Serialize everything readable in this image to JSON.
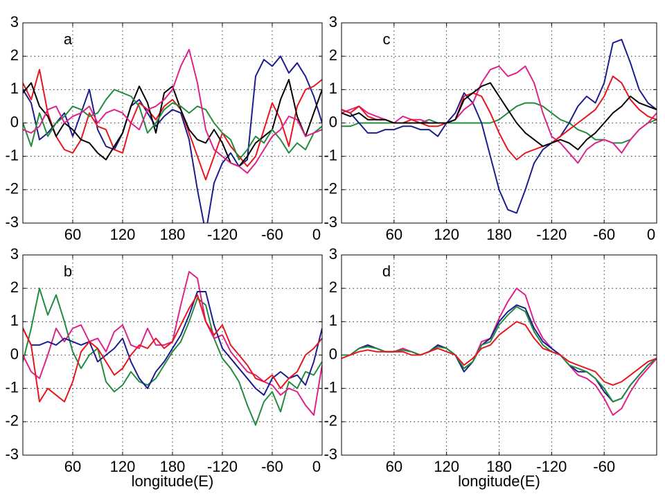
{
  "chart_data": [
    {
      "type": "line",
      "annotation": "a",
      "x": [
        0,
        10,
        20,
        30,
        40,
        50,
        60,
        70,
        80,
        90,
        100,
        110,
        120,
        130,
        140,
        150,
        160,
        170,
        180,
        190,
        200,
        210,
        220,
        230,
        240,
        250,
        260,
        270,
        280,
        290,
        300,
        310,
        320,
        330,
        340,
        350,
        360
      ],
      "xlim": [
        0,
        360
      ],
      "xticks": [
        60,
        120,
        180,
        {
          "value": 240,
          "label": "-120"
        },
        {
          "value": 300,
          "label": "-60"
        },
        {
          "value": 360,
          "label": "0"
        }
      ],
      "ylim": [
        -3,
        3
      ],
      "yticks": [
        -3,
        -2,
        -1,
        0,
        1,
        2,
        3
      ],
      "grid": true,
      "series": [
        {
          "color": "#1c1c8f",
          "values": [
            1,
            0.6,
            -0.5,
            -0.3,
            0,
            0.3,
            -0.4,
            0.3,
            1,
            -0.2,
            -0.7,
            -0.8,
            -0.3,
            0.5,
            0.7,
            0.3,
            -0.1,
            0.2,
            0.4,
            0.3,
            -0.5,
            -2,
            -3.3,
            -1.8,
            -1.2,
            -0.9,
            -1.3,
            -1.1,
            1.4,
            1.9,
            1.7,
            2,
            1.5,
            1.8,
            1.4,
            0.8,
            0
          ]
        },
        {
          "color": "#e8141e",
          "values": [
            1.2,
            0.7,
            1.6,
            0.3,
            -0.4,
            -0.8,
            -0.9,
            -0.5,
            0.3,
            -0.1,
            -0.2,
            -0.8,
            -0.9,
            0,
            0.6,
            0.4,
            0.1,
            0.5,
            0.7,
            0.4,
            -0.3,
            -1,
            -1.7,
            -1,
            -0.3,
            -0.7,
            -1,
            -1.3,
            -1,
            -0.2,
            0.6,
            0.1,
            -0.7,
            0.5,
            1,
            1.1,
            1.3
          ]
        },
        {
          "color": "#000000",
          "values": [
            0.9,
            1.2,
            0.5,
            0.2,
            -0.4,
            0,
            -0.2,
            -0.5,
            -0.6,
            -0.9,
            -1.1,
            -0.7,
            -0.3,
            0.5,
            1.1,
            0.6,
            -0.3,
            0.9,
            1.1,
            0.4,
            -0.2,
            -0.5,
            -0.6,
            -0.2,
            -0.6,
            -1.2,
            -1.3,
            -1,
            -0.6,
            -0.4,
            -0.2,
            0.7,
            1.3,
            0.2,
            -0.4,
            0.3,
            1
          ]
        },
        {
          "color": "#218c3c",
          "values": [
            0,
            -0.7,
            0.3,
            -0.4,
            0,
            0.2,
            0.5,
            0.4,
            0.2,
            0.3,
            0.7,
            1,
            0.9,
            0.8,
            0.5,
            -0.3,
            0,
            0.4,
            0.6,
            0.5,
            0.3,
            0.5,
            0.4,
            0,
            -0.3,
            -0.5,
            -1.1,
            -0.8,
            -0.4,
            -0.6,
            -0.2,
            -0.5,
            -0.9,
            -0.6,
            -0.8,
            -0.3,
            -0.1
          ]
        },
        {
          "color": "#e0218a",
          "values": [
            -0.2,
            -0.3,
            -0.1,
            0.4,
            0.5,
            0,
            0.2,
            0.3,
            0.5,
            0,
            0.3,
            0.4,
            0.3,
            0,
            -0.2,
            0.4,
            0.5,
            0.7,
            1,
            1.7,
            2.2,
            1.2,
            -0.2,
            -0.8,
            -1,
            -1.2,
            -1.3,
            -1.5,
            -1.2,
            -0.8,
            -0.4,
            -0.2,
            0.2,
            0.1,
            -0.4,
            -0.3,
            -0.2
          ]
        }
      ]
    },
    {
      "type": "line",
      "annotation": "b",
      "xlabel": "longitude(E)",
      "x": [
        0,
        10,
        20,
        30,
        40,
        50,
        60,
        70,
        80,
        90,
        100,
        110,
        120,
        130,
        140,
        150,
        160,
        170,
        180,
        190,
        200,
        210,
        220,
        230,
        240,
        250,
        260,
        270,
        280,
        290,
        300,
        310,
        320,
        330,
        340,
        350,
        360
      ],
      "xlim": [
        0,
        360
      ],
      "xticks": [
        60,
        120,
        180,
        {
          "value": 240,
          "label": "-120"
        },
        {
          "value": 300,
          "label": "-60"
        },
        {
          "value": 360,
          "label": "0"
        }
      ],
      "ylim": [
        -3,
        3
      ],
      "yticks": [
        -3,
        -2,
        -1,
        0,
        1,
        2,
        3
      ],
      "grid": true,
      "series": [
        {
          "color": "#218c3c",
          "values": [
            -0.2,
            0.8,
            2,
            1.2,
            1.8,
            1,
            0.1,
            -0.4,
            0,
            0.2,
            -0.8,
            -1.1,
            -0.9,
            -0.5,
            -0.8,
            -0.9,
            -0.7,
            -0.3,
            0.1,
            0.4,
            1,
            1.7,
            1.5,
            0.5,
            -0.1,
            -0.4,
            -0.8,
            -1.5,
            -2.1,
            -1.4,
            -1.1,
            -1.7,
            -0.8,
            -1,
            -0.5,
            -0.6,
            -0.2
          ]
        },
        {
          "color": "#e0218a",
          "values": [
            0,
            -0.5,
            -0.7,
            0,
            0.8,
            0.4,
            0.8,
            0.9,
            0.4,
            0.5,
            0.1,
            0.7,
            0.9,
            0.3,
            0.2,
            0.8,
            0.3,
            0.3,
            0.4,
            1.5,
            2.5,
            2.3,
            1,
            0.5,
            0.6,
            0.1,
            -0.2,
            -0.5,
            -0.6,
            -0.8,
            -0.9,
            -1.2,
            -1,
            -1.1,
            -1.5,
            -1.8,
            -0.3
          ]
        },
        {
          "color": "#1c1c8f",
          "values": [
            0.8,
            0.3,
            0.3,
            0.4,
            0.3,
            0.5,
            0.4,
            0.3,
            0.4,
            -0.2,
            0,
            0.2,
            0.5,
            -0.2,
            -0.7,
            -1,
            -0.5,
            -0.2,
            0.2,
            0.6,
            1.2,
            1.9,
            1.9,
            0.9,
            0.2,
            -0.1,
            -0.4,
            -0.7,
            -1,
            -1.2,
            -0.7,
            -0.5,
            -0.7,
            -0.6,
            -0.9,
            -0.2,
            0.8
          ]
        },
        {
          "color": "#e8141e",
          "values": [
            0.8,
            0.3,
            -1.4,
            -1,
            -1.2,
            -1.4,
            -0.8,
            0.1,
            0.4,
            0.2,
            -0.2,
            -0.6,
            -0.4,
            0,
            0.3,
            0.2,
            0.5,
            0.2,
            0.4,
            0.9,
            1.4,
            1.8,
            1,
            0.6,
            0.9,
            0.3,
            0,
            -0.3,
            -0.7,
            -0.8,
            -0.6,
            -1,
            -0.7,
            -0.5,
            0,
            0.2,
            0.5
          ]
        }
      ]
    },
    {
      "type": "line",
      "annotation": "c",
      "x": [
        0,
        10,
        20,
        30,
        40,
        50,
        60,
        70,
        80,
        90,
        100,
        110,
        120,
        130,
        140,
        150,
        160,
        170,
        180,
        190,
        200,
        210,
        220,
        230,
        240,
        250,
        260,
        270,
        280,
        290,
        300,
        310,
        320,
        330,
        340,
        350,
        360
      ],
      "xlim": [
        0,
        360
      ],
      "xticks": [
        60,
        120,
        180,
        {
          "value": 240,
          "label": "-120"
        },
        {
          "value": 300,
          "label": "-60"
        },
        {
          "value": 360,
          "label": "0"
        }
      ],
      "ylim": [
        -3,
        3
      ],
      "yticks": [
        -3,
        -2,
        -1,
        0,
        1,
        2,
        3
      ],
      "grid": true,
      "series": [
        {
          "color": "#218c3c",
          "values": [
            -0.1,
            -0.1,
            0,
            0,
            0,
            0,
            0,
            0,
            0,
            0,
            0.1,
            0,
            0,
            0,
            0,
            0,
            0,
            0,
            0.1,
            0.3,
            0.5,
            0.6,
            0.6,
            0.5,
            0.3,
            0.1,
            0,
            -0.2,
            -0.3,
            -0.5,
            -0.5,
            -0.6,
            -0.6,
            -0.5,
            -0.2,
            0,
            0.1
          ]
        },
        {
          "color": "#1c1c8f",
          "values": [
            0.4,
            0.3,
            0,
            -0.3,
            -0.3,
            -0.2,
            -0.2,
            -0.1,
            -0.1,
            -0.2,
            -0.2,
            -0.4,
            0,
            0.3,
            0.9,
            0.6,
            0,
            -1,
            -2,
            -2.6,
            -2.7,
            -2,
            -1.2,
            -0.8,
            -0.6,
            -0.4,
            0,
            0.5,
            0.8,
            0.6,
            1.2,
            2.4,
            2.5,
            1.8,
            1,
            0.6,
            0.4
          ]
        },
        {
          "color": "#e0218a",
          "values": [
            0.3,
            0.4,
            0.5,
            0.3,
            0.2,
            0.1,
            0,
            0.2,
            0.1,
            0.1,
            0,
            0,
            0,
            0.1,
            0.4,
            0.6,
            1.2,
            1.6,
            1.7,
            1.4,
            1.5,
            1.7,
            1.2,
            0.3,
            -0.4,
            -0.6,
            -0.9,
            -1.2,
            -0.8,
            -0.6,
            -0.5,
            -0.6,
            -0.9,
            -0.5,
            -0.2,
            0,
            0.3
          ]
        },
        {
          "color": "#e8141e",
          "values": [
            0.4,
            0.3,
            0.5,
            0.2,
            0.1,
            0.1,
            0,
            0,
            0.1,
            0,
            -0.1,
            -0.1,
            0,
            0.1,
            0.8,
            0.9,
            0.8,
            0.3,
            -0.3,
            -0.8,
            -1.1,
            -0.9,
            -0.8,
            -0.7,
            -0.6,
            -0.4,
            -0.2,
            0,
            0.2,
            0.4,
            0.8,
            1.4,
            1.2,
            0.7,
            0.4,
            0.2,
            0.1
          ]
        },
        {
          "color": "#000000",
          "values": [
            0.3,
            0.2,
            0.3,
            0.1,
            0.1,
            0.1,
            0,
            0,
            0,
            0,
            0,
            0,
            0,
            0.1,
            0.7,
            0.9,
            1.1,
            1.2,
            0.8,
            0.4,
            0,
            -0.3,
            -0.5,
            -0.7,
            -0.6,
            -0.5,
            -0.6,
            -0.8,
            -0.5,
            -0.3,
            0,
            0.3,
            0.5,
            0.8,
            0.6,
            0.5,
            0.4
          ]
        }
      ]
    },
    {
      "type": "line",
      "annotation": "d",
      "xlabel": "longitude(E)",
      "x": [
        0,
        10,
        20,
        30,
        40,
        50,
        60,
        70,
        80,
        90,
        100,
        110,
        120,
        130,
        140,
        150,
        160,
        170,
        180,
        190,
        200,
        210,
        220,
        230,
        240,
        250,
        260,
        270,
        280,
        290,
        300,
        310,
        320,
        330,
        340,
        350,
        360
      ],
      "xlim": [
        0,
        360
      ],
      "xticks": [
        60,
        120,
        180,
        {
          "value": 240,
          "label": "-120"
        },
        {
          "value": 300,
          "label": "-60"
        }
      ],
      "ylim": [
        -3,
        3
      ],
      "yticks": [
        -3,
        -2,
        -1,
        0,
        1,
        2,
        3
      ],
      "grid": true,
      "series": [
        {
          "color": "#e0218a",
          "values": [
            0,
            0,
            0.2,
            0.3,
            0.2,
            0.1,
            0.1,
            0.2,
            0.1,
            0,
            0.1,
            0.3,
            0.2,
            0,
            -0.4,
            -0.2,
            0.4,
            0.5,
            1.1,
            1.6,
            2,
            1.8,
            1,
            0.5,
            0.2,
            0,
            -0.3,
            -0.6,
            -0.7,
            -0.9,
            -1.3,
            -1.8,
            -1.6,
            -1.1,
            -0.7,
            -0.4,
            -0.1
          ]
        },
        {
          "color": "#1c1c8f",
          "values": [
            0,
            0,
            0.2,
            0.3,
            0.2,
            0.1,
            0.1,
            0.15,
            0.1,
            0,
            0.1,
            0.3,
            0.2,
            0,
            -0.5,
            -0.2,
            0.3,
            0.5,
            1,
            1.3,
            1.5,
            1.4,
            0.8,
            0.4,
            0.2,
            0,
            -0.3,
            -0.5,
            -0.5,
            -0.7,
            -1.1,
            -1.4,
            -1.3,
            -0.9,
            -0.6,
            -0.3,
            -0.1
          ]
        },
        {
          "color": "#218c3c",
          "values": [
            0,
            0,
            0.2,
            0.25,
            0.2,
            0.1,
            0.1,
            0.15,
            0.1,
            0,
            0.1,
            0.25,
            0.2,
            0,
            -0.4,
            -0.2,
            0.3,
            0.4,
            0.9,
            1.2,
            1.45,
            1.3,
            0.7,
            0.3,
            0.1,
            0,
            -0.3,
            -0.4,
            -0.5,
            -0.7,
            -1,
            -1.4,
            -1.3,
            -0.9,
            -0.6,
            -0.3,
            -0.1
          ]
        },
        {
          "color": "#e8141e",
          "values": [
            -0.1,
            0,
            0.1,
            0.15,
            0.1,
            0.1,
            0.1,
            0.1,
            0,
            0,
            0.1,
            0.2,
            0.1,
            0,
            -0.3,
            -0.1,
            0.2,
            0.3,
            0.6,
            0.8,
            1,
            0.9,
            0.5,
            0.2,
            0.1,
            0,
            -0.2,
            -0.3,
            -0.4,
            -0.5,
            -0.8,
            -0.9,
            -0.8,
            -0.6,
            -0.4,
            -0.2,
            -0.1
          ]
        }
      ]
    }
  ]
}
